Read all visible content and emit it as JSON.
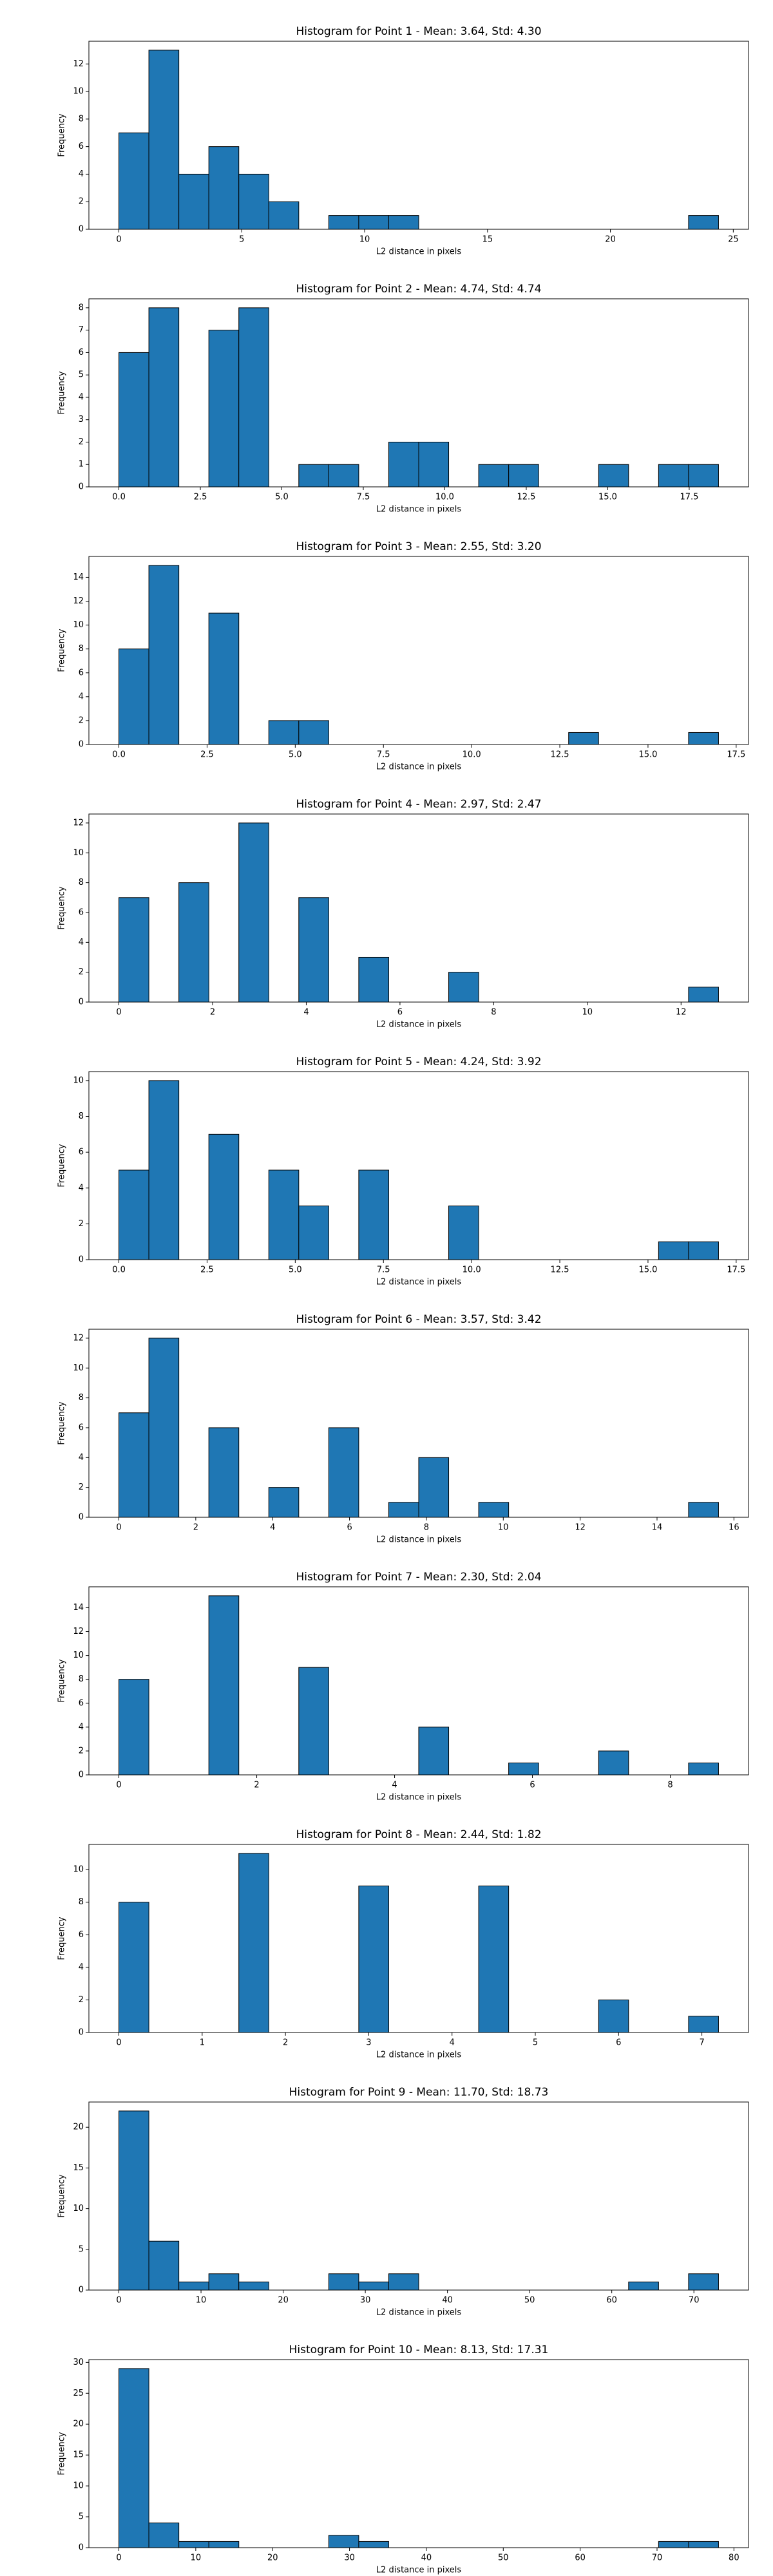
{
  "chart_data": [
    {
      "type": "histogram",
      "title": "Histogram for Point 1 - Mean: 3.64, Std: 4.30",
      "xlabel": "L2 distance in pixels",
      "ylabel": "Frequency",
      "color": "#1f77b4",
      "bins": [
        0,
        1.22,
        2.44,
        3.66,
        4.88,
        6.1,
        7.32,
        8.54,
        9.76,
        10.98,
        12.2,
        13.42,
        14.64,
        15.86,
        17.08,
        18.3,
        19.52,
        20.74,
        21.96,
        23.18,
        24.4
      ],
      "values": [
        7,
        13,
        4,
        6,
        4,
        2,
        0,
        1,
        1,
        1,
        0,
        0,
        0,
        0,
        0,
        0,
        0,
        0,
        0,
        1
      ],
      "xlim": [
        -1.22,
        25.62
      ],
      "ylim": [
        0,
        13.65
      ],
      "xticks": [
        0,
        5,
        10,
        15,
        20,
        25
      ],
      "yticks": [
        0,
        2,
        4,
        6,
        8,
        10,
        12
      ]
    },
    {
      "type": "histogram",
      "title": "Histogram for Point 2 - Mean: 4.74, Std: 4.74",
      "xlabel": "L2 distance in pixels",
      "ylabel": "Frequency",
      "color": "#1f77b4",
      "bins": [
        0,
        0.92,
        1.84,
        2.76,
        3.68,
        4.6,
        5.52,
        6.44,
        7.36,
        8.28,
        9.2,
        10.12,
        11.04,
        11.96,
        12.88,
        13.8,
        14.72,
        15.64,
        16.56,
        17.48,
        18.4
      ],
      "values": [
        6,
        8,
        0,
        7,
        8,
        0,
        1,
        1,
        0,
        2,
        2,
        0,
        1,
        1,
        0,
        0,
        1,
        0,
        1,
        1
      ],
      "xlim": [
        -0.92,
        19.32
      ],
      "ylim": [
        0,
        8.4
      ],
      "xticks": [
        {
          "value": 0,
          "label": "0.0"
        },
        {
          "value": 2.5,
          "label": "2.5"
        },
        {
          "value": 5,
          "label": "5.0"
        },
        {
          "value": 7.5,
          "label": "7.5"
        },
        {
          "value": 10,
          "label": "10.0"
        },
        {
          "value": 12.5,
          "label": "12.5"
        },
        {
          "value": 15,
          "label": "15.0"
        },
        {
          "value": 17.5,
          "label": "17.5"
        }
      ],
      "yticks": [
        0,
        1,
        2,
        3,
        4,
        5,
        6,
        7,
        8
      ]
    },
    {
      "type": "histogram",
      "title": "Histogram for Point 3 - Mean: 2.55, Std: 3.20",
      "xlabel": "L2 distance in pixels",
      "ylabel": "Frequency",
      "color": "#1f77b4",
      "bins": [
        0,
        0.85,
        1.7,
        2.55,
        3.4,
        4.25,
        5.1,
        5.95,
        6.8,
        7.65,
        8.5,
        9.35,
        10.2,
        11.05,
        11.9,
        12.75,
        13.6,
        14.45,
        15.3,
        16.15,
        17
      ],
      "values": [
        8,
        15,
        0,
        11,
        0,
        2,
        2,
        0,
        0,
        0,
        0,
        0,
        0,
        0,
        0,
        1,
        0,
        0,
        0,
        1
      ],
      "xlim": [
        -0.85,
        17.85
      ],
      "ylim": [
        0,
        15.75
      ],
      "xticks": [
        {
          "value": 0,
          "label": "0.0"
        },
        {
          "value": 2.5,
          "label": "2.5"
        },
        {
          "value": 5,
          "label": "5.0"
        },
        {
          "value": 7.5,
          "label": "7.5"
        },
        {
          "value": 10,
          "label": "10.0"
        },
        {
          "value": 12.5,
          "label": "12.5"
        },
        {
          "value": 15,
          "label": "15.0"
        },
        {
          "value": 17.5,
          "label": "17.5"
        }
      ],
      "yticks": [
        0,
        2,
        4,
        6,
        8,
        10,
        12,
        14
      ]
    },
    {
      "type": "histogram",
      "title": "Histogram for Point 4 - Mean: 2.97, Std: 2.47",
      "xlabel": "L2 distance in pixels",
      "ylabel": "Frequency",
      "color": "#1f77b4",
      "bins": [
        0,
        0.64,
        1.28,
        1.92,
        2.56,
        3.2,
        3.84,
        4.48,
        5.12,
        5.76,
        6.4,
        7.04,
        7.68,
        8.32,
        8.96,
        9.6,
        10.24,
        10.88,
        11.52,
        12.16,
        12.8
      ],
      "values": [
        7,
        0,
        8,
        0,
        12,
        0,
        7,
        0,
        3,
        0,
        0,
        2,
        0,
        0,
        0,
        0,
        0,
        0,
        0,
        1
      ],
      "xlim": [
        -0.64,
        13.44
      ],
      "ylim": [
        0,
        12.6
      ],
      "xticks": [
        0,
        2,
        4,
        6,
        8,
        10,
        12
      ],
      "yticks": [
        0,
        2,
        4,
        6,
        8,
        10,
        12
      ]
    },
    {
      "type": "histogram",
      "title": "Histogram for Point 5 - Mean: 4.24, Std: 3.92",
      "xlabel": "L2 distance in pixels",
      "ylabel": "Frequency",
      "color": "#1f77b4",
      "bins": [
        0,
        0.85,
        1.7,
        2.55,
        3.4,
        4.25,
        5.1,
        5.95,
        6.8,
        7.65,
        8.5,
        9.35,
        10.2,
        11.05,
        11.9,
        12.75,
        13.6,
        14.45,
        15.3,
        16.15,
        17
      ],
      "values": [
        5,
        10,
        0,
        7,
        0,
        5,
        3,
        0,
        5,
        0,
        0,
        3,
        0,
        0,
        0,
        0,
        0,
        0,
        1,
        1
      ],
      "xlim": [
        -0.85,
        17.85
      ],
      "ylim": [
        0,
        10.5
      ],
      "xticks": [
        {
          "value": 0,
          "label": "0.0"
        },
        {
          "value": 2.5,
          "label": "2.5"
        },
        {
          "value": 5,
          "label": "5.0"
        },
        {
          "value": 7.5,
          "label": "7.5"
        },
        {
          "value": 10,
          "label": "10.0"
        },
        {
          "value": 12.5,
          "label": "12.5"
        },
        {
          "value": 15,
          "label": "15.0"
        },
        {
          "value": 17.5,
          "label": "17.5"
        }
      ],
      "yticks": [
        0,
        2,
        4,
        6,
        8,
        10
      ]
    },
    {
      "type": "histogram",
      "title": "Histogram for Point 6 - Mean: 3.57, Std: 3.42",
      "xlabel": "L2 distance in pixels",
      "ylabel": "Frequency",
      "color": "#1f77b4",
      "bins": [
        0,
        0.78,
        1.56,
        2.34,
        3.12,
        3.9,
        4.68,
        5.46,
        6.24,
        7.02,
        7.8,
        8.58,
        9.36,
        10.14,
        10.92,
        11.7,
        12.48,
        13.26,
        14.04,
        14.82,
        15.6
      ],
      "values": [
        7,
        12,
        0,
        6,
        0,
        2,
        0,
        6,
        0,
        1,
        4,
        0,
        1,
        0,
        0,
        0,
        0,
        0,
        0,
        1
      ],
      "xlim": [
        -0.78,
        16.38
      ],
      "ylim": [
        0,
        12.6
      ],
      "xticks": [
        0,
        2,
        4,
        6,
        8,
        10,
        12,
        14,
        16
      ],
      "yticks": [
        0,
        2,
        4,
        6,
        8,
        10,
        12
      ]
    },
    {
      "type": "histogram",
      "title": "Histogram for Point 7 - Mean: 2.30, Std: 2.04",
      "xlabel": "L2 distance in pixels",
      "ylabel": "Frequency",
      "color": "#1f77b4",
      "bins": [
        0,
        0.435,
        0.87,
        1.305,
        1.74,
        2.175,
        2.61,
        3.045,
        3.48,
        3.915,
        4.35,
        4.785,
        5.22,
        5.655,
        6.09,
        6.525,
        6.96,
        7.395,
        7.83,
        8.265,
        8.7
      ],
      "values": [
        8,
        0,
        0,
        15,
        0,
        0,
        9,
        0,
        0,
        0,
        4,
        0,
        0,
        1,
        0,
        0,
        2,
        0,
        0,
        1
      ],
      "xlim": [
        -0.435,
        9.135
      ],
      "ylim": [
        0,
        15.75
      ],
      "xticks": [
        0,
        2,
        4,
        6,
        8
      ],
      "yticks": [
        0,
        2,
        4,
        6,
        8,
        10,
        12,
        14
      ]
    },
    {
      "type": "histogram",
      "title": "Histogram for Point 8 - Mean: 2.44, Std: 1.82",
      "xlabel": "L2 distance in pixels",
      "ylabel": "Frequency",
      "color": "#1f77b4",
      "bins": [
        0,
        0.36,
        0.72,
        1.08,
        1.44,
        1.8,
        2.16,
        2.52,
        2.88,
        3.24,
        3.6,
        3.96,
        4.32,
        4.68,
        5.04,
        5.4,
        5.76,
        6.12,
        6.48,
        6.84,
        7.2
      ],
      "values": [
        8,
        0,
        0,
        0,
        11,
        0,
        0,
        0,
        9,
        0,
        0,
        0,
        9,
        0,
        0,
        0,
        2,
        0,
        0,
        1
      ],
      "xlim": [
        -0.36,
        7.56
      ],
      "ylim": [
        0,
        11.55
      ],
      "xticks": [
        0,
        1,
        2,
        3,
        4,
        5,
        6,
        7
      ],
      "yticks": [
        0,
        2,
        4,
        6,
        8,
        10
      ]
    },
    {
      "type": "histogram",
      "title": "Histogram for Point 9 - Mean: 11.70, Std: 18.73",
      "xlabel": "L2 distance in pixels",
      "ylabel": "Frequency",
      "color": "#1f77b4",
      "bins": [
        0,
        3.65,
        7.3,
        10.95,
        14.6,
        18.25,
        21.9,
        25.55,
        29.2,
        32.85,
        36.5,
        40.15,
        43.8,
        47.45,
        51.1,
        54.75,
        58.4,
        62.05,
        65.7,
        69.35,
        73
      ],
      "values": [
        22,
        6,
        1,
        2,
        1,
        0,
        0,
        2,
        1,
        2,
        0,
        0,
        0,
        0,
        0,
        0,
        0,
        1,
        0,
        2
      ],
      "xlim": [
        -3.65,
        76.65
      ],
      "ylim": [
        0,
        23.1
      ],
      "xticks": [
        0,
        10,
        20,
        30,
        40,
        50,
        60,
        70
      ],
      "yticks": [
        0,
        5,
        10,
        15,
        20
      ]
    },
    {
      "type": "histogram",
      "title": "Histogram for Point 10 - Mean: 8.13, Std: 17.31",
      "xlabel": "L2 distance in pixels",
      "ylabel": "Frequency",
      "color": "#1f77b4",
      "bins": [
        0,
        3.9,
        7.8,
        11.7,
        15.6,
        19.5,
        23.4,
        27.3,
        31.2,
        35.1,
        39,
        42.9,
        46.8,
        50.7,
        54.6,
        58.5,
        62.4,
        66.3,
        70.2,
        74.1,
        78
      ],
      "values": [
        29,
        4,
        1,
        1,
        0,
        0,
        0,
        2,
        1,
        0,
        0,
        0,
        0,
        0,
        0,
        0,
        0,
        0,
        1,
        1
      ],
      "xlim": [
        -3.9,
        81.9
      ],
      "ylim": [
        0,
        30.45
      ],
      "xticks": [
        0,
        10,
        20,
        30,
        40,
        50,
        60,
        70,
        80
      ],
      "yticks": [
        0,
        5,
        10,
        15,
        20,
        25,
        30
      ]
    }
  ]
}
